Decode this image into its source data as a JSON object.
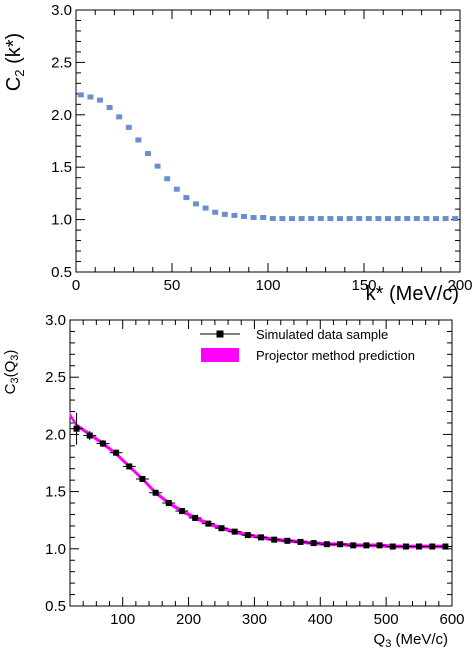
{
  "chart_data": [
    {
      "type": "scatter",
      "ylabel": "C",
      "ylabel_sub": "2",
      "ylabel_suffix": " (k*)",
      "xlabel": "k* (MeV/c)",
      "xlim": [
        0,
        200
      ],
      "ylim": [
        0.5,
        3.0
      ],
      "xticks": [
        "0",
        "50",
        "100",
        "150",
        "200"
      ],
      "yticks": [
        "0.5",
        "1.0",
        "1.5",
        "2.0",
        "2.5",
        "3.0"
      ],
      "marker_color": "#6a8fd0",
      "series": [
        {
          "x": [
            2.5,
            7.5,
            12.5,
            17.5,
            22.5,
            27.5,
            32.5,
            37.5,
            42.5,
            47.5,
            52.5,
            57.5,
            62.5,
            67.5,
            72.5,
            77.5,
            82.5,
            87.5,
            92.5,
            97.5,
            102.5,
            107.5,
            112.5,
            117.5,
            122.5,
            127.5,
            132.5,
            137.5,
            142.5,
            147.5,
            152.5,
            157.5,
            162.5,
            167.5,
            172.5,
            177.5,
            182.5,
            187.5,
            192.5,
            197.5
          ],
          "y": [
            2.19,
            2.17,
            2.14,
            2.07,
            1.98,
            1.88,
            1.76,
            1.63,
            1.51,
            1.39,
            1.29,
            1.21,
            1.15,
            1.11,
            1.07,
            1.05,
            1.04,
            1.03,
            1.02,
            1.02,
            1.01,
            1.01,
            1.01,
            1.01,
            1.01,
            1.01,
            1.01,
            1.01,
            1.01,
            1.01,
            1.01,
            1.01,
            1.01,
            1.01,
            1.01,
            1.01,
            1.01,
            1.01,
            1.01,
            1.01
          ]
        }
      ]
    },
    {
      "type": "scatter",
      "ylabel": "C",
      "ylabel_sub": "3",
      "ylabel_mid": "(Q",
      "ylabel_sub2": "3",
      "ylabel_end": ")",
      "xlabel": "Q",
      "xlabel_sub": "3",
      "xlabel_suffix": " (MeV/c)",
      "xlim": [
        20,
        600
      ],
      "ylim": [
        0.5,
        3.0
      ],
      "xticks": [
        "100",
        "200",
        "300",
        "400",
        "500",
        "600"
      ],
      "yticks": [
        "0.5",
        "1.0",
        "1.5",
        "2.0",
        "2.5",
        "3.0"
      ],
      "band_color": "#ff00ff",
      "marker_color": "#000000",
      "legend": [
        {
          "label": "Simulated data sample"
        },
        {
          "label": "Projector method prediction"
        }
      ],
      "series": [
        {
          "name": "Simulated data sample",
          "x": [
            30,
            50,
            70,
            90,
            110,
            130,
            150,
            170,
            190,
            210,
            230,
            250,
            270,
            290,
            310,
            330,
            350,
            370,
            390,
            410,
            430,
            450,
            470,
            490,
            510,
            530,
            550,
            570,
            590
          ],
          "y": [
            2.05,
            1.99,
            1.92,
            1.84,
            1.72,
            1.61,
            1.49,
            1.4,
            1.33,
            1.27,
            1.22,
            1.18,
            1.15,
            1.12,
            1.1,
            1.08,
            1.07,
            1.06,
            1.05,
            1.04,
            1.04,
            1.03,
            1.03,
            1.03,
            1.02,
            1.02,
            1.02,
            1.02,
            1.02
          ],
          "yerr": [
            0.14,
            0.04,
            0.03,
            0.025,
            0.02,
            0.02,
            0.015,
            0.015,
            0.015,
            0.01,
            0.01,
            0.01,
            0.01,
            0.01,
            0.01,
            0.01,
            0.01,
            0.01,
            0.01,
            0.01,
            0.01,
            0.01,
            0.01,
            0.01,
            0.01,
            0.01,
            0.01,
            0.01,
            0.01
          ]
        },
        {
          "name": "Projector method prediction",
          "x": [
            20,
            30,
            50,
            70,
            90,
            110,
            130,
            150,
            170,
            190,
            210,
            230,
            250,
            270,
            290,
            310,
            330,
            350,
            370,
            390,
            410,
            430,
            450,
            470,
            490,
            510,
            530,
            550,
            570,
            590
          ],
          "y": [
            2.17,
            2.08,
            2.0,
            1.92,
            1.83,
            1.72,
            1.61,
            1.49,
            1.4,
            1.33,
            1.27,
            1.22,
            1.18,
            1.15,
            1.12,
            1.1,
            1.08,
            1.07,
            1.06,
            1.05,
            1.04,
            1.04,
            1.03,
            1.03,
            1.03,
            1.02,
            1.02,
            1.02,
            1.02,
            1.02
          ]
        }
      ]
    }
  ]
}
